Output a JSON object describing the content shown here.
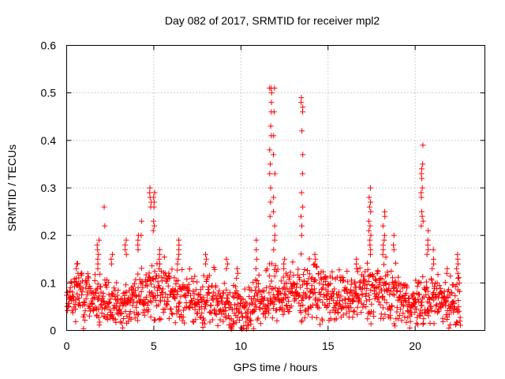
{
  "chart_data": {
    "type": "scatter",
    "title": "Day 082 of 2017, SRMTID for receiver mpl2",
    "xlabel": "GPS time / hours",
    "ylabel": "SRMTID / TECUs",
    "xlim": [
      0,
      24
    ],
    "ylim": [
      0,
      0.6
    ],
    "x_ticks": [
      0,
      5,
      10,
      15,
      20
    ],
    "x_tick_labels": [
      "0",
      "5",
      "10",
      "15",
      "20"
    ],
    "y_ticks": [
      0,
      0.1,
      0.2,
      0.3,
      0.4,
      0.5,
      0.6
    ],
    "y_tick_labels": [
      "0",
      "0.1",
      "0.2",
      "0.3",
      "0.4",
      "0.5",
      "0.6"
    ],
    "grid": true,
    "marker": "plus",
    "series_color": "#ff0000",
    "baseline": {
      "x": [
        0,
        0.5,
        1,
        1.5,
        2,
        2.5,
        3,
        3.5,
        4,
        4.5,
        5,
        5.5,
        6,
        6.5,
        7,
        7.5,
        8,
        8.5,
        9,
        9.5,
        10,
        10.5,
        11,
        11.5,
        12,
        12.5,
        13,
        13.5,
        14,
        14.5,
        15,
        15.5,
        16,
        16.5,
        17,
        17.5,
        18,
        18.5,
        19,
        19.5,
        20,
        20.5,
        21,
        21.5,
        22,
        22.6
      ],
      "center": [
        0.06,
        0.075,
        0.07,
        0.075,
        0.065,
        0.055,
        0.05,
        0.06,
        0.065,
        0.075,
        0.08,
        0.085,
        0.075,
        0.07,
        0.065,
        0.06,
        0.06,
        0.065,
        0.055,
        0.05,
        0.045,
        0.045,
        0.06,
        0.07,
        0.075,
        0.08,
        0.08,
        0.085,
        0.085,
        0.08,
        0.075,
        0.07,
        0.065,
        0.07,
        0.08,
        0.085,
        0.08,
        0.075,
        0.07,
        0.06,
        0.055,
        0.06,
        0.065,
        0.065,
        0.06,
        0.06
      ],
      "spread": [
        0.035,
        0.04,
        0.04,
        0.04,
        0.04,
        0.035,
        0.035,
        0.035,
        0.04,
        0.045,
        0.05,
        0.05,
        0.045,
        0.045,
        0.04,
        0.04,
        0.04,
        0.04,
        0.035,
        0.035,
        0.035,
        0.035,
        0.04,
        0.045,
        0.045,
        0.045,
        0.045,
        0.045,
        0.045,
        0.045,
        0.04,
        0.04,
        0.04,
        0.04,
        0.045,
        0.05,
        0.05,
        0.045,
        0.04,
        0.035,
        0.035,
        0.04,
        0.04,
        0.04,
        0.04,
        0.04
      ]
    },
    "spikes": [
      {
        "x": 0.6,
        "values": [
          0.14,
          0.13,
          0.12,
          0.11
        ]
      },
      {
        "x": 1.8,
        "values": [
          0.19,
          0.18,
          0.17,
          0.16,
          0.15,
          0.14,
          0.13
        ]
      },
      {
        "x": 2.2,
        "values": [
          0.26,
          0.22
        ]
      },
      {
        "x": 2.6,
        "values": [
          0.16,
          0.15,
          0.14
        ]
      },
      {
        "x": 3.4,
        "values": [
          0.19,
          0.18,
          0.17,
          0.16
        ]
      },
      {
        "x": 4.1,
        "values": [
          0.2,
          0.19,
          0.18,
          0.17
        ]
      },
      {
        "x": 4.3,
        "values": [
          0.23,
          0.2
        ]
      },
      {
        "x": 4.8,
        "values": [
          0.3,
          0.29,
          0.28,
          0.27,
          0.26
        ]
      },
      {
        "x": 5.0,
        "values": [
          0.29,
          0.28,
          0.27,
          0.26,
          0.23,
          0.22,
          0.21
        ]
      },
      {
        "x": 5.3,
        "values": [
          0.17,
          0.16,
          0.15,
          0.14,
          0.13
        ]
      },
      {
        "x": 6.4,
        "values": [
          0.19,
          0.18,
          0.17,
          0.16,
          0.15,
          0.14
        ]
      },
      {
        "x": 8.0,
        "values": [
          0.16,
          0.15,
          0.14
        ]
      },
      {
        "x": 9.2,
        "values": [
          0.15,
          0.14,
          0.13
        ]
      },
      {
        "x": 9.8,
        "values": [
          0.13,
          0.12,
          0.11
        ]
      },
      {
        "x": 10.9,
        "values": [
          0.19,
          0.17,
          0.15,
          0.13
        ]
      },
      {
        "x": 11.7,
        "values": [
          0.51,
          0.51,
          0.5,
          0.48,
          0.46,
          0.43,
          0.41,
          0.38,
          0.35,
          0.33,
          0.3,
          0.27,
          0.24
        ]
      },
      {
        "x": 11.9,
        "values": [
          0.51,
          0.46,
          0.41,
          0.37,
          0.33,
          0.28,
          0.25,
          0.22,
          0.2,
          0.19,
          0.17
        ]
      },
      {
        "x": 12.5,
        "values": [
          0.15,
          0.14,
          0.13
        ]
      },
      {
        "x": 13.5,
        "values": [
          0.49,
          0.48,
          0.47,
          0.46,
          0.42,
          0.37,
          0.33,
          0.29,
          0.26,
          0.24,
          0.22,
          0.2
        ]
      },
      {
        "x": 14.3,
        "values": [
          0.16,
          0.15,
          0.14
        ]
      },
      {
        "x": 16.6,
        "values": [
          0.15,
          0.14,
          0.13
        ]
      },
      {
        "x": 17.4,
        "values": [
          0.3,
          0.28,
          0.27,
          0.26,
          0.25,
          0.23,
          0.22,
          0.21,
          0.2,
          0.19,
          0.18,
          0.17,
          0.16
        ]
      },
      {
        "x": 18.2,
        "values": [
          0.25,
          0.24,
          0.22,
          0.2,
          0.19,
          0.18,
          0.17,
          0.16
        ]
      },
      {
        "x": 18.8,
        "values": [
          0.2,
          0.18,
          0.17
        ]
      },
      {
        "x": 20.4,
        "values": [
          0.39,
          0.35,
          0.34,
          0.33,
          0.32,
          0.3,
          0.29,
          0.28,
          0.25,
          0.24,
          0.23,
          0.22
        ]
      },
      {
        "x": 20.7,
        "values": [
          0.21,
          0.19,
          0.18,
          0.17,
          0.16
        ]
      },
      {
        "x": 21.0,
        "values": [
          0.17,
          0.15,
          0.14,
          0.13
        ]
      },
      {
        "x": 21.8,
        "values": [
          0.13,
          0.12
        ]
      },
      {
        "x": 22.4,
        "values": [
          0.16,
          0.15,
          0.14,
          0.13,
          0.12,
          0.11
        ]
      }
    ]
  }
}
